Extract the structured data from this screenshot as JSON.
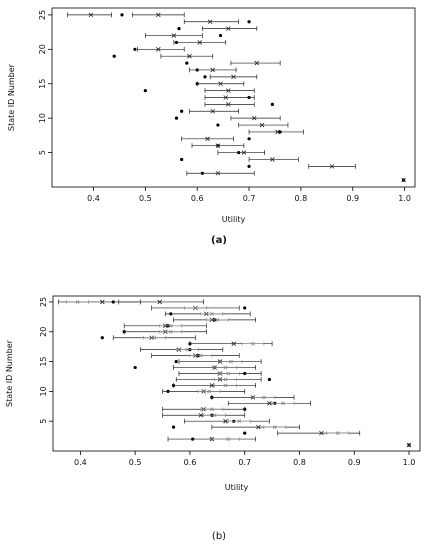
{
  "chart_data": [
    {
      "type": "scatter",
      "panel_label": "(a)",
      "xlabel": "Utility",
      "ylabel": "State ID Number",
      "xlim": [
        0.32,
        1.02
      ],
      "ylim": [
        0,
        26
      ],
      "xticks": [
        "0.4",
        "0.5",
        "0.6",
        "0.7",
        "0.8",
        "0.9",
        "1.0"
      ],
      "yticks": [
        "5",
        "10",
        "15",
        "20",
        "25"
      ],
      "series": [
        {
          "marker": "dot",
          "points": [
            {
              "y": 1,
              "x": 0.998
            },
            {
              "y": 2,
              "x": 0.61
            },
            {
              "y": 3,
              "x": 0.7
            },
            {
              "y": 4,
              "x": 0.57
            },
            {
              "y": 5,
              "x": 0.68
            },
            {
              "y": 6,
              "x": 0.64
            },
            {
              "y": 7,
              "x": 0.7
            },
            {
              "y": 8,
              "x": 0.76
            },
            {
              "y": 9,
              "x": 0.64
            },
            {
              "y": 10,
              "x": 0.56
            },
            {
              "y": 11,
              "x": 0.57
            },
            {
              "y": 12,
              "x": 0.745
            },
            {
              "y": 13,
              "x": 0.7
            },
            {
              "y": 14,
              "x": 0.5
            },
            {
              "y": 15,
              "x": 0.6
            },
            {
              "y": 16,
              "x": 0.615
            },
            {
              "y": 17,
              "x": 0.6
            },
            {
              "y": 18,
              "x": 0.58
            },
            {
              "y": 19,
              "x": 0.44
            },
            {
              "y": 20,
              "x": 0.48
            },
            {
              "y": 21,
              "x": 0.56
            },
            {
              "y": 22,
              "x": 0.645
            },
            {
              "y": 23,
              "x": 0.565
            },
            {
              "y": 24,
              "x": 0.7
            },
            {
              "y": 25,
              "x": 0.455
            }
          ]
        },
        {
          "marker": "x-with-interval",
          "points": [
            {
              "y": 1,
              "x": 0.998,
              "lo": 0.998,
              "hi": 0.998
            },
            {
              "y": 2,
              "x": 0.64,
              "lo": 0.58,
              "hi": 0.71
            },
            {
              "y": 3,
              "x": 0.86,
              "lo": 0.815,
              "hi": 0.905
            },
            {
              "y": 4,
              "x": 0.745,
              "lo": 0.7,
              "hi": 0.795
            },
            {
              "y": 5,
              "x": 0.69,
              "lo": 0.64,
              "hi": 0.73
            },
            {
              "y": 6,
              "x": 0.64,
              "lo": 0.59,
              "hi": 0.69
            },
            {
              "y": 7,
              "x": 0.62,
              "lo": 0.57,
              "hi": 0.67
            },
            {
              "y": 8,
              "x": 0.755,
              "lo": 0.7,
              "hi": 0.805
            },
            {
              "y": 9,
              "x": 0.725,
              "lo": 0.68,
              "hi": 0.775
            },
            {
              "y": 10,
              "x": 0.71,
              "lo": 0.665,
              "hi": 0.76
            },
            {
              "y": 11,
              "x": 0.63,
              "lo": 0.585,
              "hi": 0.68
            },
            {
              "y": 12,
              "x": 0.66,
              "lo": 0.615,
              "hi": 0.71
            },
            {
              "y": 13,
              "x": 0.655,
              "lo": 0.615,
              "hi": 0.71
            },
            {
              "y": 14,
              "x": 0.66,
              "lo": 0.615,
              "hi": 0.71
            },
            {
              "y": 15,
              "x": 0.645,
              "lo": 0.6,
              "hi": 0.69
            },
            {
              "y": 16,
              "x": 0.67,
              "lo": 0.625,
              "hi": 0.715
            },
            {
              "y": 17,
              "x": 0.63,
              "lo": 0.585,
              "hi": 0.675
            },
            {
              "y": 18,
              "x": 0.715,
              "lo": 0.665,
              "hi": 0.76
            },
            {
              "y": 19,
              "x": 0.585,
              "lo": 0.53,
              "hi": 0.63
            },
            {
              "y": 20,
              "x": 0.525,
              "lo": 0.485,
              "hi": 0.575
            },
            {
              "y": 21,
              "x": 0.605,
              "lo": 0.555,
              "hi": 0.655
            },
            {
              "y": 22,
              "x": 0.555,
              "lo": 0.5,
              "hi": 0.61
            },
            {
              "y": 23,
              "x": 0.66,
              "lo": 0.61,
              "hi": 0.715
            },
            {
              "y": 24,
              "x": 0.625,
              "lo": 0.575,
              "hi": 0.68
            },
            {
              "y": 25,
              "x": 0.525,
              "lo": 0.475,
              "hi": 0.575
            },
            {
              "y": 25,
              "x": 0.395,
              "lo": 0.35,
              "hi": 0.435
            }
          ]
        }
      ]
    },
    {
      "type": "scatter",
      "panel_label": "(b)",
      "xlabel": "Utility",
      "ylabel": "State ID Number",
      "xlim": [
        0.35,
        1.02
      ],
      "ylim": [
        0,
        26
      ],
      "xticks": [
        "0.4",
        "0.5",
        "0.6",
        "0.7",
        "0.8",
        "0.9",
        "1.0"
      ],
      "yticks": [
        "5",
        "10",
        "15",
        "20",
        "25"
      ],
      "series": [
        {
          "marker": "dot",
          "points": [
            {
              "y": 1,
              "x": 1.0
            },
            {
              "y": 2,
              "x": 0.605
            },
            {
              "y": 3,
              "x": 0.7
            },
            {
              "y": 4,
              "x": 0.57
            },
            {
              "y": 5,
              "x": 0.68
            },
            {
              "y": 6,
              "x": 0.64
            },
            {
              "y": 7,
              "x": 0.7
            },
            {
              "y": 8,
              "x": 0.755
            },
            {
              "y": 9,
              "x": 0.64
            },
            {
              "y": 10,
              "x": 0.56
            },
            {
              "y": 11,
              "x": 0.57
            },
            {
              "y": 12,
              "x": 0.745
            },
            {
              "y": 13,
              "x": 0.7
            },
            {
              "y": 14,
              "x": 0.5
            },
            {
              "y": 15,
              "x": 0.575
            },
            {
              "y": 16,
              "x": 0.615
            },
            {
              "y": 17,
              "x": 0.6
            },
            {
              "y": 18,
              "x": 0.6
            },
            {
              "y": 19,
              "x": 0.44
            },
            {
              "y": 20,
              "x": 0.48
            },
            {
              "y": 21,
              "x": 0.56
            },
            {
              "y": 22,
              "x": 0.645
            },
            {
              "y": 23,
              "x": 0.565
            },
            {
              "y": 24,
              "x": 0.7
            },
            {
              "y": 25,
              "x": 0.46
            }
          ]
        },
        {
          "marker": "x-with-interval",
          "points": [
            {
              "y": 1,
              "x": 1.0,
              "lo": 1.0,
              "hi": 1.0
            },
            {
              "y": 2,
              "x": 0.64,
              "lo": 0.56,
              "hi": 0.72
            },
            {
              "y": 3,
              "x": 0.84,
              "lo": 0.76,
              "hi": 0.91
            },
            {
              "y": 4,
              "x": 0.725,
              "lo": 0.64,
              "hi": 0.8
            },
            {
              "y": 5,
              "x": 0.665,
              "lo": 0.59,
              "hi": 0.745
            },
            {
              "y": 6,
              "x": 0.62,
              "lo": 0.55,
              "hi": 0.7
            },
            {
              "y": 7,
              "x": 0.625,
              "lo": 0.55,
              "hi": 0.7
            },
            {
              "y": 8,
              "x": 0.745,
              "lo": 0.67,
              "hi": 0.82
            },
            {
              "y": 9,
              "x": 0.715,
              "lo": 0.64,
              "hi": 0.79
            },
            {
              "y": 10,
              "x": 0.625,
              "lo": 0.55,
              "hi": 0.7
            },
            {
              "y": 11,
              "x": 0.64,
              "lo": 0.57,
              "hi": 0.72
            },
            {
              "y": 12,
              "x": 0.655,
              "lo": 0.575,
              "hi": 0.73
            },
            {
              "y": 13,
              "x": 0.655,
              "lo": 0.58,
              "hi": 0.73
            },
            {
              "y": 14,
              "x": 0.645,
              "lo": 0.57,
              "hi": 0.72
            },
            {
              "y": 15,
              "x": 0.655,
              "lo": 0.58,
              "hi": 0.73
            },
            {
              "y": 16,
              "x": 0.61,
              "lo": 0.53,
              "hi": 0.69
            },
            {
              "y": 17,
              "x": 0.58,
              "lo": 0.51,
              "hi": 0.66
            },
            {
              "y": 18,
              "x": 0.68,
              "lo": 0.6,
              "hi": 0.75
            },
            {
              "y": 19,
              "x": 0.53,
              "lo": 0.46,
              "hi": 0.61
            },
            {
              "y": 20,
              "x": 0.555,
              "lo": 0.48,
              "hi": 0.63
            },
            {
              "y": 21,
              "x": 0.555,
              "lo": 0.48,
              "hi": 0.63
            },
            {
              "y": 22,
              "x": 0.64,
              "lo": 0.57,
              "hi": 0.72
            },
            {
              "y": 23,
              "x": 0.63,
              "lo": 0.555,
              "hi": 0.71
            },
            {
              "y": 24,
              "x": 0.61,
              "lo": 0.53,
              "hi": 0.69
            },
            {
              "y": 25,
              "x": 0.545,
              "lo": 0.47,
              "hi": 0.625
            },
            {
              "y": 25,
              "x": 0.44,
              "lo": 0.36,
              "hi": 0.51
            }
          ]
        },
        {
          "marker": "gray-x-with-interval",
          "points": [
            {
              "y": 2,
              "x": 0.67,
              "lo": 0.64,
              "hi": 0.69
            },
            {
              "y": 3,
              "x": 0.87,
              "lo": 0.85,
              "hi": 0.89
            },
            {
              "y": 4,
              "x": 0.755,
              "lo": 0.735,
              "hi": 0.775
            },
            {
              "y": 5,
              "x": 0.69,
              "lo": 0.67,
              "hi": 0.71
            },
            {
              "y": 6,
              "x": 0.645,
              "lo": 0.625,
              "hi": 0.665
            },
            {
              "y": 7,
              "x": 0.64,
              "lo": 0.62,
              "hi": 0.66
            },
            {
              "y": 8,
              "x": 0.77,
              "lo": 0.75,
              "hi": 0.79
            },
            {
              "y": 9,
              "x": 0.735,
              "lo": 0.715,
              "hi": 0.755
            },
            {
              "y": 10,
              "x": 0.635,
              "lo": 0.615,
              "hi": 0.655
            },
            {
              "y": 11,
              "x": 0.665,
              "lo": 0.645,
              "hi": 0.685
            },
            {
              "y": 12,
              "x": 0.665,
              "lo": 0.645,
              "hi": 0.685
            },
            {
              "y": 13,
              "x": 0.67,
              "lo": 0.65,
              "hi": 0.69
            },
            {
              "y": 14,
              "x": 0.665,
              "lo": 0.645,
              "hi": 0.685
            },
            {
              "y": 15,
              "x": 0.675,
              "lo": 0.655,
              "hi": 0.695
            },
            {
              "y": 16,
              "x": 0.62,
              "lo": 0.6,
              "hi": 0.64
            },
            {
              "y": 17,
              "x": 0.595,
              "lo": 0.575,
              "hi": 0.615
            },
            {
              "y": 18,
              "x": 0.715,
              "lo": 0.695,
              "hi": 0.735
            },
            {
              "y": 19,
              "x": 0.535,
              "lo": 0.515,
              "hi": 0.555
            },
            {
              "y": 20,
              "x": 0.565,
              "lo": 0.545,
              "hi": 0.585
            },
            {
              "y": 21,
              "x": 0.565,
              "lo": 0.545,
              "hi": 0.585
            },
            {
              "y": 22,
              "x": 0.65,
              "lo": 0.63,
              "hi": 0.67
            },
            {
              "y": 23,
              "x": 0.64,
              "lo": 0.62,
              "hi": 0.66
            },
            {
              "y": 24,
              "x": 0.61,
              "lo": 0.59,
              "hi": 0.63
            },
            {
              "y": 25,
              "x": 0.395,
              "lo": 0.375,
              "hi": 0.415
            }
          ]
        }
      ]
    }
  ]
}
